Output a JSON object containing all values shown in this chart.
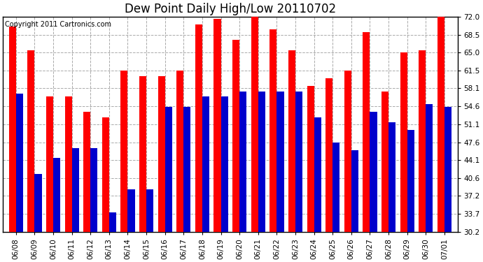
{
  "title": "Dew Point Daily High/Low 20110702",
  "copyright": "Copyright 2011 Cartronics.com",
  "dates": [
    "06/08",
    "06/09",
    "06/10",
    "06/11",
    "06/12",
    "06/13",
    "06/14",
    "06/15",
    "06/16",
    "06/17",
    "06/18",
    "06/19",
    "06/20",
    "06/21",
    "06/22",
    "06/23",
    "06/24",
    "06/25",
    "06/26",
    "06/27",
    "06/28",
    "06/29",
    "06/30",
    "07/01"
  ],
  "high": [
    70.0,
    65.5,
    56.5,
    56.5,
    53.5,
    52.5,
    61.5,
    60.5,
    60.5,
    61.5,
    70.5,
    71.5,
    67.5,
    73.5,
    69.5,
    65.5,
    58.5,
    60.0,
    61.5,
    69.0,
    57.5,
    65.0,
    65.5,
    73.0
  ],
  "low": [
    57.0,
    41.5,
    44.5,
    46.5,
    46.5,
    34.0,
    38.5,
    38.5,
    54.5,
    54.5,
    56.5,
    56.5,
    57.5,
    57.5,
    57.5,
    57.5,
    52.5,
    47.5,
    46.0,
    53.5,
    51.5,
    50.0,
    55.0,
    54.5
  ],
  "high_color": "#ff0000",
  "low_color": "#0000cc",
  "background_color": "#ffffff",
  "grid_color": "#aaaaaa",
  "ylim_min": 30.2,
  "ylim_max": 72.0,
  "yticks": [
    30.2,
    33.7,
    37.2,
    40.6,
    44.1,
    47.6,
    51.1,
    54.6,
    58.1,
    61.5,
    65.0,
    68.5,
    72.0
  ],
  "bar_width": 0.38,
  "title_fontsize": 12,
  "tick_fontsize": 7.5,
  "copyright_fontsize": 7
}
